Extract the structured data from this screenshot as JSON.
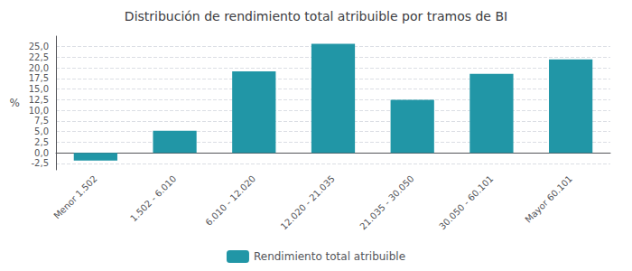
{
  "chart_data": {
    "type": "bar",
    "title": "Distribución de rendimiento total atribuible por tramos de BI",
    "categories": [
      "Menor 1.502",
      "1.502 - 6.010",
      "6.010 - 12.020",
      "12.020 - 21.035",
      "21.035 - 30.050",
      "30.050 - 60.101",
      "Mayor 60.101"
    ],
    "series": [
      {
        "name": "Rendimiento total atribuible",
        "color": "#2196A6",
        "values": [
          -1.8,
          5.2,
          19.2,
          25.7,
          12.5,
          18.6,
          22.0
        ]
      }
    ],
    "ylabel": "%",
    "ylim": [
      -4.0,
      27.5
    ],
    "yticks": [
      {
        "value": -2.5,
        "label": "-2,5"
      },
      {
        "value": 0.0,
        "label": "0,0"
      },
      {
        "value": 2.5,
        "label": "2,5"
      },
      {
        "value": 5.0,
        "label": "5,0"
      },
      {
        "value": 7.5,
        "label": "7,5"
      },
      {
        "value": 10.0,
        "label": "10,0"
      },
      {
        "value": 12.5,
        "label": "12,5"
      },
      {
        "value": 15.0,
        "label": "15,0"
      },
      {
        "value": 17.5,
        "label": "17,5"
      },
      {
        "value": 20.0,
        "label": "20,0"
      },
      {
        "value": 22.5,
        "label": "22,5"
      },
      {
        "value": 25.0,
        "label": "25,0"
      }
    ],
    "grid": true,
    "legend": "bottom"
  }
}
